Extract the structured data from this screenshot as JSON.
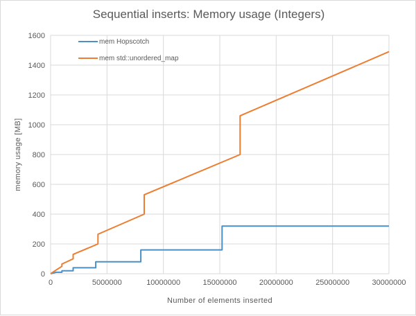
{
  "chart_data": {
    "type": "line",
    "title": "Sequential inserts: Memory usage (Integers)",
    "xlabel": "Number  of elements  inserted",
    "ylabel": "memory  usage [MB]",
    "xlim": [
      0,
      30000000
    ],
    "ylim": [
      0,
      1600
    ],
    "xticks": [
      0,
      5000000,
      10000000,
      15000000,
      20000000,
      25000000,
      30000000
    ],
    "xtick_labels": [
      "0",
      "5000000",
      "10000000",
      "15000000",
      "20000000",
      "25000000",
      "30000000"
    ],
    "yticks": [
      0,
      200,
      400,
      600,
      800,
      1000,
      1200,
      1400,
      1600
    ],
    "ytick_labels": [
      "0",
      "200",
      "400",
      "600",
      "800",
      "1000",
      "1200",
      "1400",
      "1600"
    ],
    "grid": "vertical and horizontal",
    "legend_position": "top-left",
    "series": [
      {
        "name": "mem Hopscotch",
        "color": "#4a8fc6",
        "x": [
          0,
          500000,
          1000000,
          1000000,
          2000000,
          2000000,
          4000000,
          4000000,
          8000000,
          8000000,
          15200000,
          15200000,
          30000000
        ],
        "y": [
          0,
          10,
          10,
          20,
          20,
          40,
          40,
          80,
          80,
          160,
          160,
          320,
          320
        ]
      },
      {
        "name": "mem std::unordered_map",
        "color": "#ed7d31",
        "x": [
          0,
          500000,
          1000000,
          1000000,
          2000000,
          2000000,
          4200000,
          4200000,
          8300000,
          8300000,
          16800000,
          16800000,
          30000000
        ],
        "y": [
          0,
          25,
          50,
          65,
          100,
          130,
          200,
          265,
          400,
          530,
          800,
          1060,
          1490
        ]
      }
    ]
  }
}
